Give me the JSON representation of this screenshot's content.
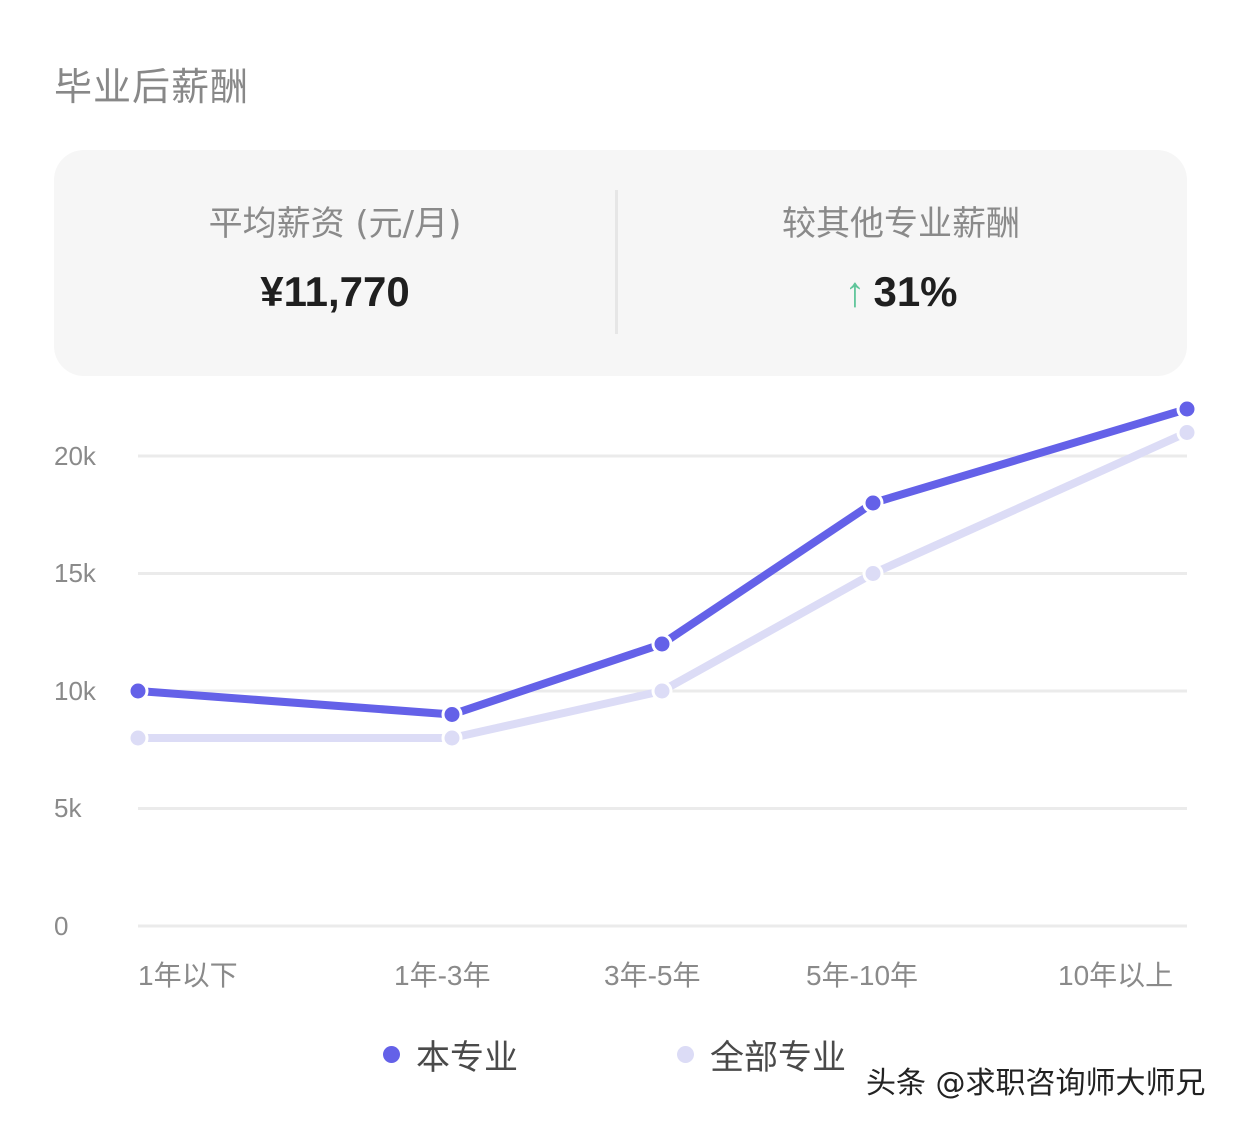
{
  "section": {
    "title": "毕业后薪酬"
  },
  "summary": {
    "avg_salary_label": "平均薪资 (元/月)",
    "avg_salary_value": "¥11,770",
    "compare_label": "较其他专业薪酬",
    "compare_arrow": "↑",
    "compare_value": "31%"
  },
  "colors": {
    "primary_series": "#6461e8",
    "secondary_series": "#dcdcf6",
    "up_arrow": "#5fc59a",
    "card_bg": "#f6f6f6",
    "grid": "#ebebeb"
  },
  "legend": [
    {
      "label": "本专业",
      "color": "#6461e8"
    },
    {
      "label": "全部专业",
      "color": "#dcdcf6"
    }
  ],
  "watermark": "头条 @求职咨询师大师兄",
  "chart_data": {
    "type": "line",
    "title": "毕业后薪酬",
    "xlabel": "",
    "ylabel": "",
    "categories": [
      "1年以下",
      "1年-3年",
      "3年-5年",
      "5年-10年",
      "10年以上"
    ],
    "y_ticks": [
      "0",
      "5k",
      "10k",
      "15k",
      "20k"
    ],
    "ylim": [
      0,
      22000
    ],
    "grid": true,
    "legend_position": "bottom",
    "series": [
      {
        "name": "本专业",
        "values": [
          10000,
          9000,
          12000,
          18000,
          22000
        ]
      },
      {
        "name": "全部专业",
        "values": [
          8000,
          8000,
          10000,
          15000,
          21000
        ]
      }
    ]
  }
}
